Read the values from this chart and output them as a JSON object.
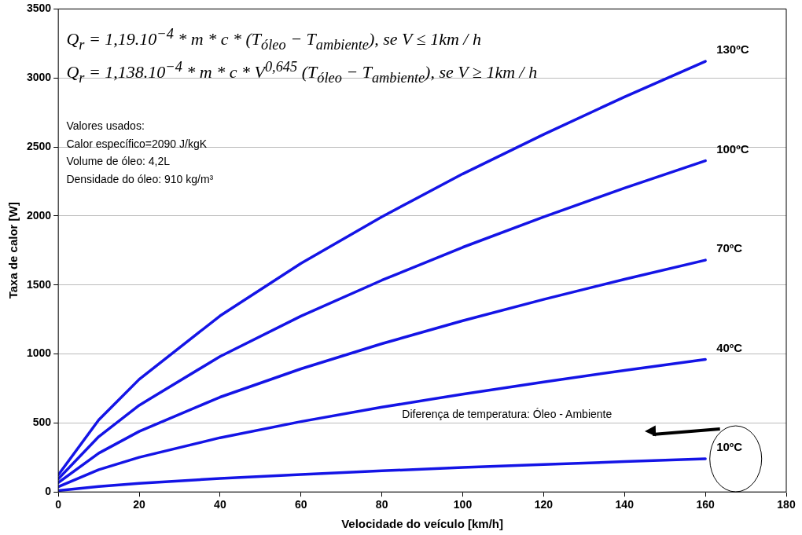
{
  "chart_data": {
    "type": "line",
    "xlabel": "Velocidade do veículo [km/h]",
    "ylabel": "Taxa de calor [W]",
    "xlim": [
      0,
      180
    ],
    "xticks": [
      0,
      20,
      40,
      60,
      80,
      100,
      120,
      140,
      160,
      180
    ],
    "ylim": [
      0,
      3500
    ],
    "yticks": [
      0,
      500,
      1000,
      1500,
      2000,
      2500,
      3000,
      3500
    ],
    "grid": "y",
    "legend": false,
    "marker": "none",
    "line_style": "solid",
    "x": [
      0,
      10,
      20,
      40,
      60,
      80,
      100,
      120,
      140,
      160
    ],
    "series": [
      {
        "name": "10ºC",
        "color": "#1414e6",
        "values": [
          10,
          40,
          63,
          98,
          127,
          153,
          177,
          199,
          220,
          240
        ]
      },
      {
        "name": "40ºC",
        "color": "#1414e6",
        "values": [
          38,
          161,
          251,
          393,
          510,
          614,
          709,
          797,
          881,
          960
        ]
      },
      {
        "name": "70ºC",
        "color": "#1414e6",
        "values": [
          67,
          281,
          439,
          687,
          892,
          1074,
          1241,
          1395,
          1541,
          1680
        ]
      },
      {
        "name": "100ºC",
        "color": "#1414e6",
        "values": [
          95,
          401,
          628,
          982,
          1274,
          1534,
          1773,
          1993,
          2202,
          2400
        ]
      },
      {
        "name": "130ºC",
        "color": "#1414e6",
        "values": [
          124,
          522,
          816,
          1276,
          1656,
          1994,
          2305,
          2591,
          2863,
          3120
        ]
      }
    ],
    "annotations": [
      "Q$_{r}$ = 1,19.10$^{−4}$ * m * c * (T$_{óleo}$ − T$_{ambiente}$),    se V ≤ 1km / h",
      "Q$_{r}$ = 1,138.10$^{−4}$ * m * c * V$^{0,645}$ (T$_{óleo}$ − T$_{ambiente}$),    se V ≥ 1km / h",
      "Valores usados:",
      "Calor específico=2090 J/kgK",
      "Volume de óleo: 4,2L",
      "Densidade do óleo: 910 kg/m³",
      "Diferença de temperatura: Óleo - Ambiente"
    ]
  }
}
